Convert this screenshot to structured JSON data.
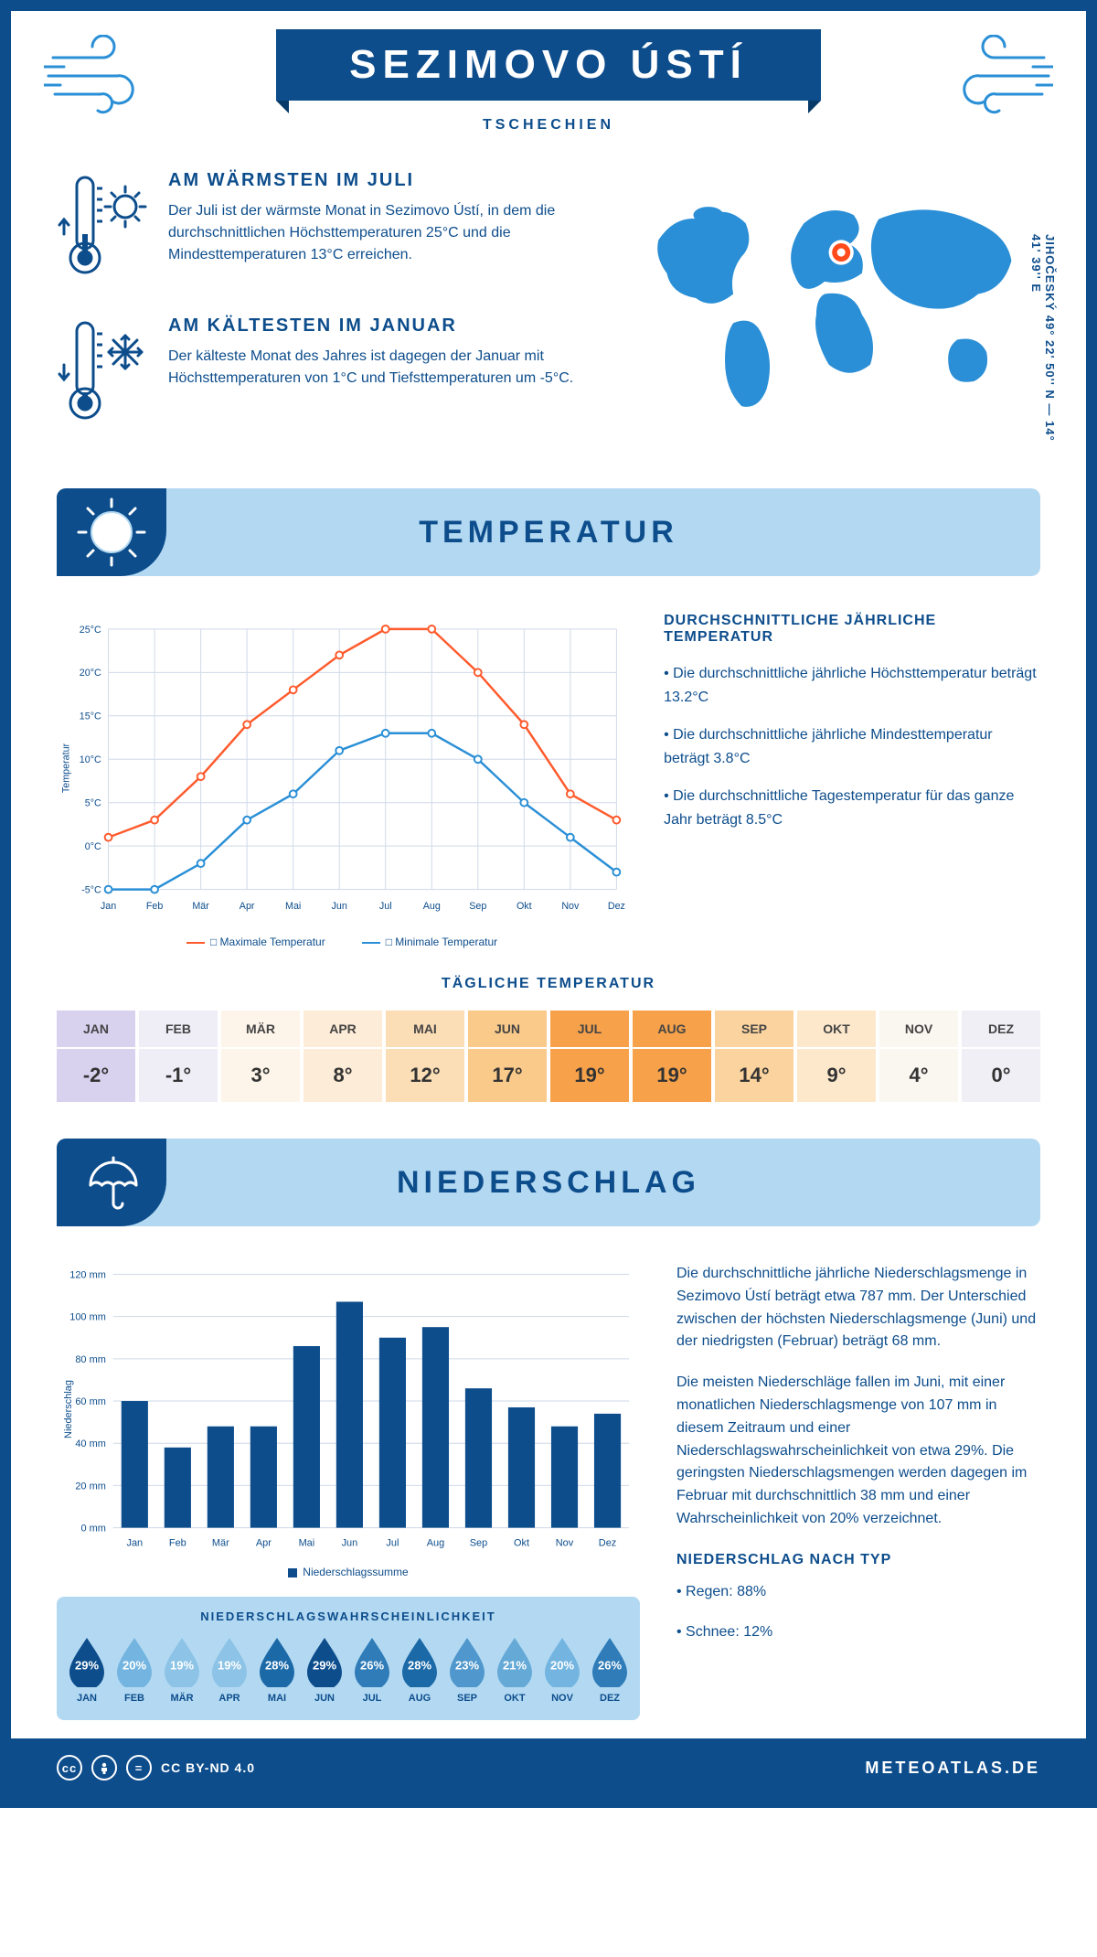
{
  "header": {
    "title": "SEZIMOVO ÚSTÍ",
    "subtitle": "TSCHECHIEN"
  },
  "coords": "JIHOČESKÝ   49° 22' 50'' N — 14° 41' 39'' E",
  "warm": {
    "title": "AM WÄRMSTEN IM JULI",
    "text": "Der Juli ist der wärmste Monat in Sezimovo Ústí, in dem die durchschnittlichen Höchsttemperaturen 25°C und die Mindesttemperaturen 13°C erreichen."
  },
  "cold": {
    "title": "AM KÄLTESTEN IM JANUAR",
    "text": "Der kälteste Monat des Jahres ist dagegen der Januar mit Höchsttemperaturen von 1°C und Tiefsttemperaturen um -5°C."
  },
  "sections": {
    "temp": "TEMPERATUR",
    "precip": "NIEDERSCHLAG"
  },
  "months": [
    "Jan",
    "Feb",
    "Mär",
    "Apr",
    "Mai",
    "Jun",
    "Jul",
    "Aug",
    "Sep",
    "Okt",
    "Nov",
    "Dez"
  ],
  "months_uc": [
    "JAN",
    "FEB",
    "MÄR",
    "APR",
    "MAI",
    "JUN",
    "JUL",
    "AUG",
    "SEP",
    "OKT",
    "NOV",
    "DEZ"
  ],
  "temp_chart": {
    "type": "line",
    "ylabel": "Temperatur",
    "ylim": [
      -5,
      25
    ],
    "ytick_step": 5,
    "yticks_labels": [
      "-5°C",
      "0°C",
      "5°C",
      "10°C",
      "15°C",
      "20°C",
      "25°C"
    ],
    "max_series": {
      "label": "Maximale Temperatur",
      "color": "#ff5a2c",
      "values": [
        1,
        3,
        8,
        14,
        18,
        22,
        25,
        25,
        20,
        14,
        6,
        3
      ]
    },
    "min_series": {
      "label": "Minimale Temperatur",
      "color": "#2a8fd6",
      "values": [
        -5,
        -5,
        -2,
        3,
        6,
        11,
        13,
        13,
        10,
        5,
        1,
        -3
      ]
    },
    "grid_color": "#cfd9e8",
    "background_color": "#ffffff"
  },
  "temp_text": {
    "heading": "DURCHSCHNITTLICHE JÄHRLICHE TEMPERATUR",
    "b1": "• Die durchschnittliche jährliche Höchsttemperatur beträgt 13.2°C",
    "b2": "• Die durchschnittliche jährliche Mindesttemperatur beträgt 3.8°C",
    "b3": "• Die durchschnittliche Tagestemperatur für das ganze Jahr beträgt 8.5°C"
  },
  "daily_temp": {
    "heading": "TÄGLICHE TEMPERATUR",
    "values": [
      "-2°",
      "-1°",
      "3°",
      "8°",
      "12°",
      "17°",
      "19°",
      "19°",
      "14°",
      "9°",
      "4°",
      "0°"
    ],
    "colors": [
      "#d8d2ef",
      "#efeef7",
      "#fdf5ea",
      "#fdecd7",
      "#fbddb6",
      "#f9ca8a",
      "#f7a24a",
      "#f7a24a",
      "#fbd39e",
      "#fde8cc",
      "#faf6f0",
      "#f0eff6"
    ]
  },
  "precip_chart": {
    "type": "bar",
    "ylabel": "Niederschlag",
    "ylim": [
      0,
      120
    ],
    "ytick_step": 20,
    "yticks_labels": [
      "0 mm",
      "20 mm",
      "40 mm",
      "60 mm",
      "80 mm",
      "100 mm",
      "120 mm"
    ],
    "values": [
      60,
      38,
      48,
      48,
      86,
      107,
      90,
      95,
      66,
      57,
      48,
      54
    ],
    "bar_color": "#0d4d8c",
    "legend": "Niederschlagssumme",
    "grid_color": "#cfd9e8"
  },
  "precip_text": {
    "p1": "Die durchschnittliche jährliche Niederschlagsmenge in Sezimovo Ústí beträgt etwa 787 mm. Der Unterschied zwischen der höchsten Niederschlagsmenge (Juni) und der niedrigsten (Februar) beträgt 68 mm.",
    "p2": "Die meisten Niederschläge fallen im Juni, mit einer monatlichen Niederschlagsmenge von 107 mm in diesem Zeitraum und einer Niederschlagswahrscheinlichkeit von etwa 29%. Die geringsten Niederschlagsmengen werden dagegen im Februar mit durchschnittlich 38 mm und einer Wahrscheinlichkeit von 20% verzeichnet.",
    "type_heading": "NIEDERSCHLAG NACH TYP",
    "rain": "• Regen: 88%",
    "snow": "• Schnee: 12%"
  },
  "prob": {
    "heading": "NIEDERSCHLAGSWAHRSCHEINLICHKEIT",
    "values": [
      "29%",
      "20%",
      "19%",
      "19%",
      "28%",
      "29%",
      "26%",
      "28%",
      "23%",
      "21%",
      "20%",
      "26%"
    ],
    "colors": [
      "#0d4d8c",
      "#73b5e0",
      "#8cc3e6",
      "#8cc3e6",
      "#1c69a8",
      "#0d4d8c",
      "#2f7cb8",
      "#1c69a8",
      "#4f97cc",
      "#65a9d7",
      "#73b5e0",
      "#2f7cb8"
    ]
  },
  "footer": {
    "license": "CC BY-ND 4.0",
    "brand": "METEOATLAS.DE"
  },
  "colors": {
    "primary": "#0d4d8c",
    "light": "#b3d9f2",
    "map": "#2a8fd6",
    "marker": "#ff4a1a"
  }
}
